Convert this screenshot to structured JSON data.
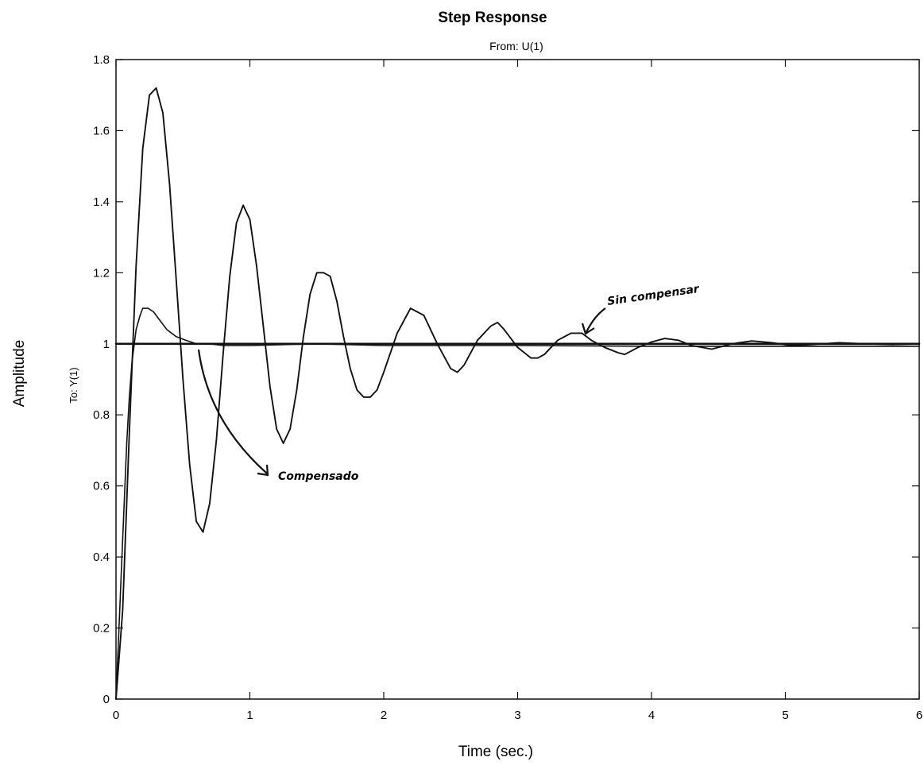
{
  "chart_data": {
    "type": "line",
    "title": "Step Response",
    "subtitle": "From: U(1)",
    "xlabel": "Time (sec.)",
    "ylabel": "Amplitude",
    "ylabel_inner": "To: Y(1)",
    "xlim": [
      0,
      6
    ],
    "ylim": [
      0,
      1.8
    ],
    "x_ticks": [
      "0",
      "1",
      "2",
      "3",
      "4",
      "5",
      "6"
    ],
    "y_ticks": [
      "0",
      "0.2",
      "0.4",
      "0.6",
      "0.8",
      "1",
      "1.2",
      "1.4",
      "1.6",
      "1.8"
    ],
    "grid": false,
    "series": [
      {
        "name": "Sin compensar",
        "x": [
          0,
          0.05,
          0.1,
          0.15,
          0.2,
          0.25,
          0.3,
          0.35,
          0.4,
          0.45,
          0.5,
          0.55,
          0.6,
          0.65,
          0.7,
          0.75,
          0.8,
          0.85,
          0.9,
          0.95,
          1.0,
          1.05,
          1.1,
          1.15,
          1.2,
          1.25,
          1.3,
          1.35,
          1.4,
          1.45,
          1.5,
          1.55,
          1.6,
          1.65,
          1.7,
          1.75,
          1.8,
          1.85,
          1.9,
          1.95,
          2.0,
          2.1,
          2.2,
          2.3,
          2.4,
          2.5,
          2.55,
          2.6,
          2.7,
          2.8,
          2.85,
          2.9,
          3.0,
          3.1,
          3.15,
          3.2,
          3.3,
          3.4,
          3.48,
          3.55,
          3.65,
          3.75,
          3.8,
          3.9,
          4.0,
          4.1,
          4.2,
          4.3,
          4.45,
          4.6,
          4.75,
          4.9,
          5.05,
          5.2,
          5.4,
          5.6,
          5.8,
          6.0
        ],
        "y": [
          0,
          0.25,
          0.75,
          1.22,
          1.55,
          1.7,
          1.72,
          1.65,
          1.45,
          1.18,
          0.9,
          0.66,
          0.5,
          0.47,
          0.55,
          0.73,
          0.97,
          1.19,
          1.34,
          1.39,
          1.35,
          1.22,
          1.05,
          0.88,
          0.76,
          0.72,
          0.76,
          0.87,
          1.02,
          1.14,
          1.2,
          1.2,
          1.19,
          1.12,
          1.02,
          0.93,
          0.87,
          0.85,
          0.85,
          0.87,
          0.92,
          1.03,
          1.1,
          1.08,
          1.0,
          0.93,
          0.92,
          0.94,
          1.01,
          1.05,
          1.06,
          1.04,
          0.99,
          0.96,
          0.96,
          0.97,
          1.01,
          1.03,
          1.03,
          1.01,
          0.99,
          0.975,
          0.97,
          0.99,
          1.005,
          1.015,
          1.01,
          0.995,
          0.985,
          1.0,
          1.008,
          1.003,
          0.995,
          0.998,
          1.003,
          1.0,
          0.998,
          1.0
        ]
      },
      {
        "name": "Compensado",
        "x": [
          0,
          0.02,
          0.05,
          0.08,
          0.1,
          0.12,
          0.15,
          0.18,
          0.2,
          0.24,
          0.28,
          0.32,
          0.38,
          0.45,
          0.52,
          0.6,
          0.7,
          0.8,
          1.0,
          1.5,
          2.0,
          3.0,
          4.0,
          5.0,
          6.0
        ],
        "y": [
          0,
          0.18,
          0.45,
          0.72,
          0.85,
          0.95,
          1.04,
          1.08,
          1.1,
          1.1,
          1.09,
          1.07,
          1.04,
          1.02,
          1.01,
          1.0,
          1.0,
          0.995,
          0.995,
          1.0,
          0.995,
          0.995,
          0.993,
          0.993,
          0.993
        ]
      },
      {
        "name": "",
        "x": [
          0,
          6
        ],
        "y": [
          1,
          1
        ]
      }
    ],
    "annotations": [
      {
        "text": "Sin compensar",
        "target_x": 3.5,
        "target_y": 1.04
      },
      {
        "text": "Compensado",
        "target_x": 0.62,
        "target_y": 1.0
      }
    ]
  }
}
